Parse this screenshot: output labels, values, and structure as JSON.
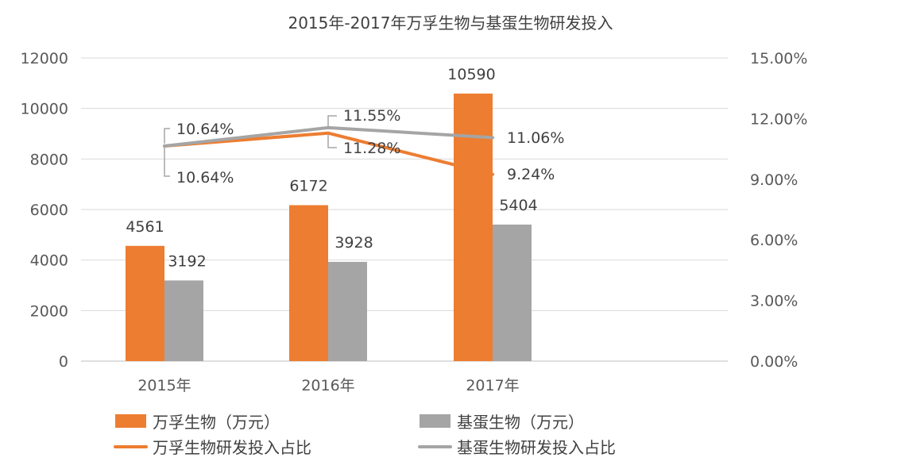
{
  "chart_data": {
    "type": "bar",
    "title": "2015年-2017年万孚生物与基蛋生物研发投入",
    "categories": [
      "2015年",
      "2016年",
      "2017年"
    ],
    "ylim": [
      0,
      12000
    ],
    "y_ticks": [
      "0",
      "2000",
      "4000",
      "6000",
      "8000",
      "10000",
      "12000"
    ],
    "y2lim": [
      0,
      0.15
    ],
    "y2_ticks": [
      "0.00%",
      "3.00%",
      "6.00%",
      "9.00%",
      "12.00%",
      "15.00%"
    ],
    "grid": true,
    "legend_position": "bottom",
    "series": [
      {
        "name": "万孚生物（万元）",
        "type": "bar",
        "axis": "left",
        "color": "#ED7D31",
        "values": [
          4561,
          6172,
          10590
        ],
        "labels": [
          "4561",
          "6172",
          "10590"
        ]
      },
      {
        "name": "基蛋生物（万元）",
        "type": "bar",
        "axis": "left",
        "color": "#A5A5A5",
        "values": [
          3192,
          3928,
          5404
        ],
        "labels": [
          "3192",
          "3928",
          "5404"
        ]
      },
      {
        "name": "万孚生物研发投入占比",
        "type": "line",
        "axis": "right",
        "color": "#ED7D31",
        "values": [
          0.1064,
          0.1128,
          0.0924
        ],
        "labels": [
          "10.64%",
          "11.28%",
          "9.24%"
        ]
      },
      {
        "name": "基蛋生物研发投入占比",
        "type": "line",
        "axis": "right",
        "color": "#A5A5A5",
        "values": [
          0.1064,
          0.1155,
          0.1106
        ],
        "labels": [
          "10.64%",
          "11.55%",
          "11.06%"
        ]
      }
    ]
  }
}
